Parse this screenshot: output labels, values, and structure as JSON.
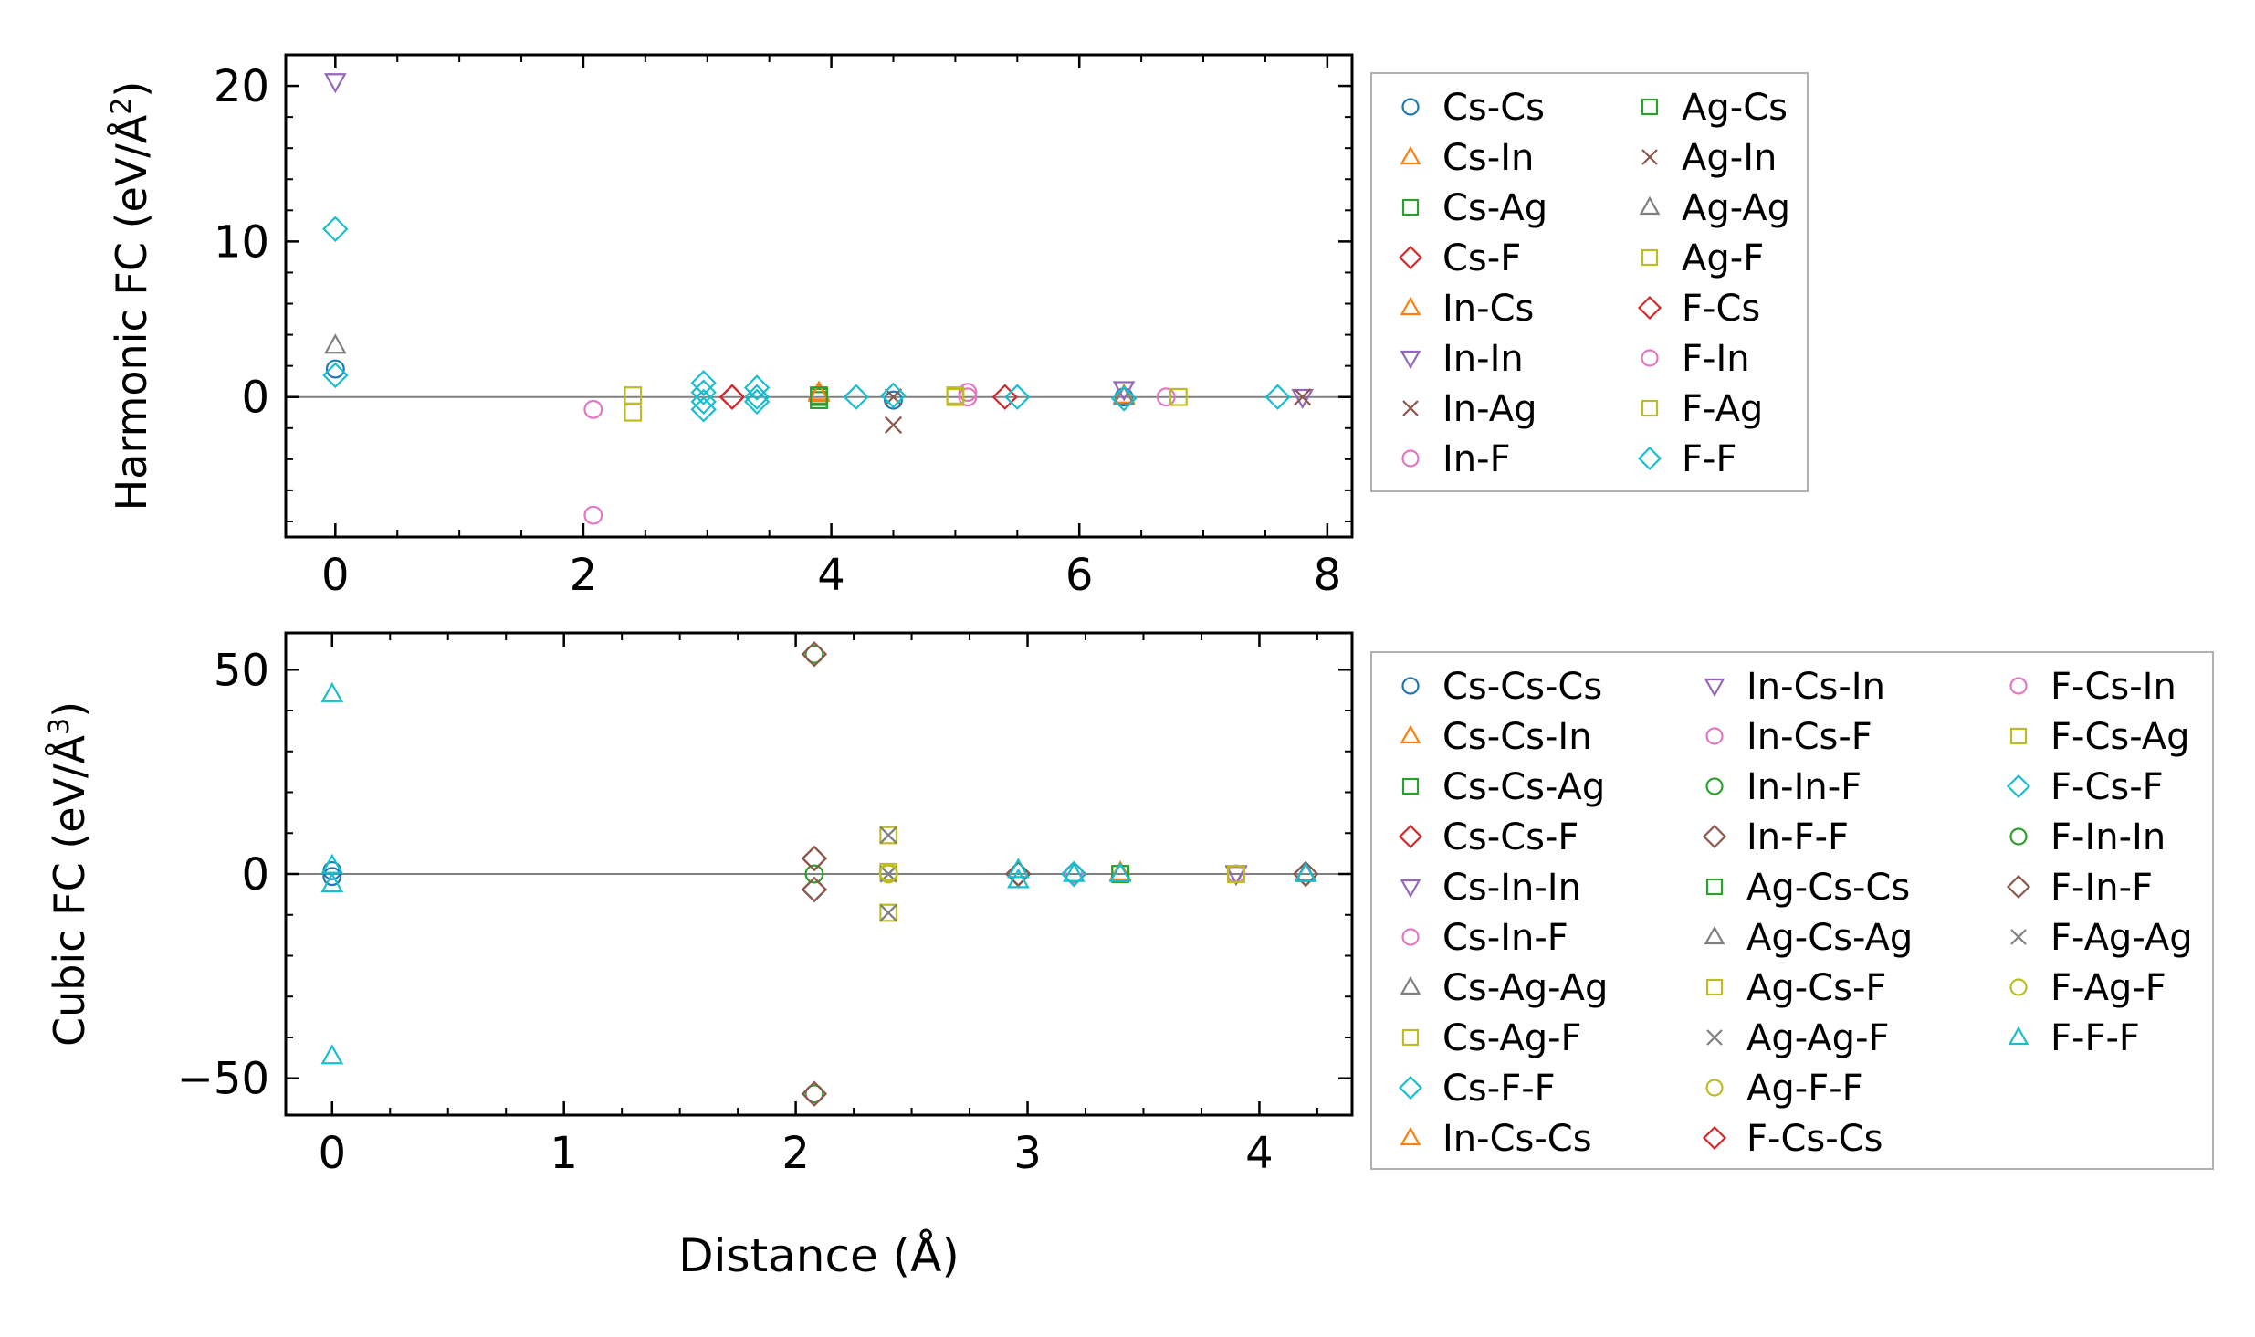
{
  "figure": {
    "xlabel_shared": "Distance (Å)"
  },
  "chart_data": [
    {
      "type": "scatter",
      "id": "harmonic",
      "title": "",
      "xlabel": "",
      "ylabel_prefix": "Harmonic FC (eV/Å",
      "ylabel_exp": "2",
      "ylabel_suffix": ")",
      "xlim": [
        -0.4,
        8.2
      ],
      "ylim": [
        -9,
        22
      ],
      "xticks": [
        0,
        2,
        4,
        6,
        8
      ],
      "yticks": [
        0,
        10,
        20
      ],
      "xminor": 0.5,
      "yminor": 2,
      "zero_line": true,
      "legend_position": "right, outside",
      "legend_columns": 2,
      "series": [
        {
          "name": "Cs-Cs",
          "marker": "circle",
          "color": "#1f77b4",
          "points": [
            [
              0,
              1.8
            ],
            [
              4.5,
              -0.2
            ],
            [
              6.36,
              0.0
            ]
          ]
        },
        {
          "name": "Cs-In",
          "marker": "triangle-up",
          "color": "#ff7f0e",
          "points": [
            [
              3.9,
              0.3
            ],
            [
              6.36,
              0.1
            ]
          ]
        },
        {
          "name": "Cs-Ag",
          "marker": "square",
          "color": "#2ca02c",
          "points": [
            [
              3.9,
              0.0
            ],
            [
              3.9,
              -0.2
            ]
          ]
        },
        {
          "name": "Cs-F",
          "marker": "diamond",
          "color": "#d62728",
          "points": [
            [
              3.2,
              0.0
            ],
            [
              5.4,
              0.0
            ]
          ]
        },
        {
          "name": "In-Cs",
          "marker": "triangle-up",
          "color": "#ff7f0e",
          "points": [
            [
              3.9,
              0.2
            ]
          ]
        },
        {
          "name": "In-In",
          "marker": "triangle-down",
          "color": "#9467bd",
          "points": [
            [
              0,
              20.3
            ],
            [
              6.36,
              0.5
            ],
            [
              7.8,
              0.0
            ]
          ]
        },
        {
          "name": "In-Ag",
          "marker": "x",
          "color": "#8c564b",
          "points": [
            [
              4.5,
              -1.8
            ],
            [
              7.8,
              0.0
            ]
          ]
        },
        {
          "name": "In-F",
          "marker": "circle",
          "color": "#e377c2",
          "points": [
            [
              2.08,
              -0.8
            ],
            [
              2.08,
              -7.6
            ],
            [
              5.1,
              0.3
            ],
            [
              6.7,
              0.0
            ]
          ]
        },
        {
          "name": "Ag-Cs",
          "marker": "square",
          "color": "#2ca02c",
          "points": [
            [
              3.9,
              0.1
            ]
          ]
        },
        {
          "name": "Ag-In",
          "marker": "x",
          "color": "#8c564b",
          "points": [
            [
              4.5,
              0.0
            ]
          ]
        },
        {
          "name": "Ag-Ag",
          "marker": "triangle-up",
          "color": "#7f7f7f",
          "points": [
            [
              0,
              3.3
            ],
            [
              6.36,
              0.0
            ]
          ]
        },
        {
          "name": "Ag-F",
          "marker": "square",
          "color": "#bcbd22",
          "points": [
            [
              2.4,
              0.1
            ],
            [
              2.4,
              -1.0
            ],
            [
              5.0,
              0.0
            ],
            [
              6.8,
              0.0
            ]
          ]
        },
        {
          "name": "F-Cs",
          "marker": "diamond",
          "color": "#d62728",
          "points": [
            [
              3.2,
              0.0
            ]
          ]
        },
        {
          "name": "F-In",
          "marker": "circle",
          "color": "#e377c2",
          "points": [
            [
              5.1,
              0.0
            ]
          ]
        },
        {
          "name": "F-Ag",
          "marker": "square",
          "color": "#bcbd22",
          "points": [
            [
              5.0,
              0.1
            ]
          ]
        },
        {
          "name": "F-F",
          "marker": "diamond",
          "color": "#17becf",
          "points": [
            [
              0,
              10.8
            ],
            [
              0,
              1.4
            ],
            [
              2.97,
              0.9
            ],
            [
              2.97,
              0.3
            ],
            [
              2.97,
              -0.3
            ],
            [
              2.97,
              -0.8
            ],
            [
              3.4,
              0.6
            ],
            [
              3.4,
              0.0
            ],
            [
              3.4,
              -0.3
            ],
            [
              4.2,
              0.0
            ],
            [
              4.5,
              0.1
            ],
            [
              5.5,
              0.0
            ],
            [
              6.36,
              -0.1
            ],
            [
              7.6,
              0.0
            ]
          ]
        }
      ]
    },
    {
      "type": "scatter",
      "id": "cubic",
      "title": "",
      "xlabel": "Distance (Å)",
      "ylabel_prefix": "Cubic FC (eV/Å",
      "ylabel_exp": "3",
      "ylabel_suffix": ")",
      "xlim": [
        -0.2,
        4.4
      ],
      "ylim": [
        -59,
        59
      ],
      "xticks": [
        0,
        1,
        2,
        3,
        4
      ],
      "yticks": [
        -50,
        0,
        50
      ],
      "ytick_labels": [
        "−50",
        "0",
        "50"
      ],
      "xminor": 0.25,
      "yminor": 10,
      "zero_line": true,
      "legend_position": "right, outside",
      "legend_columns": 3,
      "series": [
        {
          "name": "Cs-Cs-Cs",
          "marker": "circle",
          "color": "#1f77b4",
          "points": [
            [
              0,
              0.8
            ],
            [
              0,
              -0.6
            ],
            [
              3.2,
              0.0
            ]
          ]
        },
        {
          "name": "Cs-Cs-In",
          "marker": "triangle-up",
          "color": "#ff7f0e",
          "points": [
            [
              3.4,
              0.2
            ]
          ]
        },
        {
          "name": "Cs-Cs-Ag",
          "marker": "square",
          "color": "#2ca02c",
          "points": [
            [
              3.4,
              0.0
            ]
          ]
        },
        {
          "name": "Cs-Cs-F",
          "marker": "diamond",
          "color": "#d62728",
          "points": [
            [
              2.96,
              0.0
            ]
          ]
        },
        {
          "name": "Cs-In-In",
          "marker": "triangle-down",
          "color": "#9467bd",
          "points": [
            [
              3.9,
              0.0
            ]
          ]
        },
        {
          "name": "Cs-In-F",
          "marker": "circle",
          "color": "#e377c2",
          "points": [
            [
              3.9,
              0.0
            ]
          ]
        },
        {
          "name": "Cs-Ag-Ag",
          "marker": "triangle-up",
          "color": "#7f7f7f",
          "points": [
            [
              4.2,
              0.0
            ]
          ]
        },
        {
          "name": "Cs-Ag-F",
          "marker": "square",
          "color": "#bcbd22",
          "points": [
            [
              3.9,
              0.0
            ]
          ]
        },
        {
          "name": "Cs-F-F",
          "marker": "diamond",
          "color": "#17becf",
          "points": [
            [
              2.96,
              0.0
            ],
            [
              3.2,
              0.0
            ],
            [
              4.2,
              0.0
            ]
          ]
        },
        {
          "name": "In-Cs-Cs",
          "marker": "triangle-up",
          "color": "#ff7f0e",
          "points": [
            [
              3.4,
              0.4
            ]
          ]
        },
        {
          "name": "In-Cs-In",
          "marker": "triangle-down",
          "color": "#9467bd",
          "points": [
            [
              3.9,
              0.2
            ]
          ]
        },
        {
          "name": "In-Cs-F",
          "marker": "circle",
          "color": "#e377c2",
          "points": [
            [
              3.2,
              0.0
            ]
          ]
        },
        {
          "name": "In-In-F",
          "marker": "circle",
          "color": "#2ca02c",
          "points": [
            [
              2.08,
              53.8
            ],
            [
              2.08,
              -53.8
            ]
          ]
        },
        {
          "name": "In-F-F",
          "marker": "diamond",
          "color": "#8c564b",
          "points": [
            [
              2.08,
              53.8
            ],
            [
              2.08,
              3.8
            ],
            [
              2.08,
              -3.8
            ],
            [
              2.08,
              -53.8
            ],
            [
              2.96,
              0.0
            ],
            [
              3.2,
              0.0
            ]
          ]
        },
        {
          "name": "Ag-Cs-Cs",
          "marker": "square",
          "color": "#2ca02c",
          "points": [
            [
              3.4,
              0.0
            ]
          ]
        },
        {
          "name": "Ag-Cs-Ag",
          "marker": "triangle-up",
          "color": "#7f7f7f",
          "points": [
            [
              4.2,
              0.2
            ]
          ]
        },
        {
          "name": "Ag-Cs-F",
          "marker": "square",
          "color": "#bcbd22",
          "points": [
            [
              2.4,
              9.5
            ],
            [
              2.4,
              0.5
            ],
            [
              2.4,
              -9.5
            ],
            [
              3.9,
              0.0
            ]
          ]
        },
        {
          "name": "Ag-Ag-F",
          "marker": "x",
          "color": "#7f7f7f",
          "points": [
            [
              2.4,
              9.5
            ],
            [
              2.4,
              0.0
            ],
            [
              2.4,
              -9.5
            ]
          ]
        },
        {
          "name": "Ag-F-F",
          "marker": "circle",
          "color": "#bcbd22",
          "points": [
            [
              2.4,
              0.0
            ]
          ]
        },
        {
          "name": "F-Cs-Cs",
          "marker": "diamond",
          "color": "#d62728",
          "points": [
            [
              2.96,
              0.0
            ]
          ]
        },
        {
          "name": "F-Cs-In",
          "marker": "circle",
          "color": "#e377c2",
          "points": [
            [
              3.2,
              0.0
            ]
          ]
        },
        {
          "name": "F-Cs-Ag",
          "marker": "square",
          "color": "#bcbd22",
          "points": [
            [
              3.9,
              0.0
            ]
          ]
        },
        {
          "name": "F-Cs-F",
          "marker": "diamond",
          "color": "#17becf",
          "points": [
            [
              2.96,
              0.0
            ],
            [
              3.2,
              0.0
            ]
          ]
        },
        {
          "name": "F-In-In",
          "marker": "circle",
          "color": "#2ca02c",
          "points": [
            [
              2.08,
              0.0
            ]
          ]
        },
        {
          "name": "F-In-F",
          "marker": "diamond",
          "color": "#8c564b",
          "points": [
            [
              2.08,
              3.8
            ],
            [
              2.08,
              -3.8
            ],
            [
              2.96,
              0.0
            ],
            [
              4.2,
              0.0
            ]
          ]
        },
        {
          "name": "F-Ag-Ag",
          "marker": "x",
          "color": "#7f7f7f",
          "points": [
            [
              2.4,
              0.0
            ]
          ]
        },
        {
          "name": "F-Ag-F",
          "marker": "circle",
          "color": "#bcbd22",
          "points": [
            [
              2.4,
              0.3
            ]
          ]
        },
        {
          "name": "F-F-F",
          "marker": "triangle-up",
          "color": "#17becf",
          "points": [
            [
              0,
              44.0
            ],
            [
              0,
              2.0
            ],
            [
              0,
              -2.5
            ],
            [
              0,
              -44.6
            ],
            [
              2.96,
              1.0
            ],
            [
              2.96,
              -1.5
            ],
            [
              3.2,
              0.0
            ],
            [
              3.4,
              0.0
            ],
            [
              4.2,
              0.0
            ]
          ]
        }
      ]
    }
  ]
}
